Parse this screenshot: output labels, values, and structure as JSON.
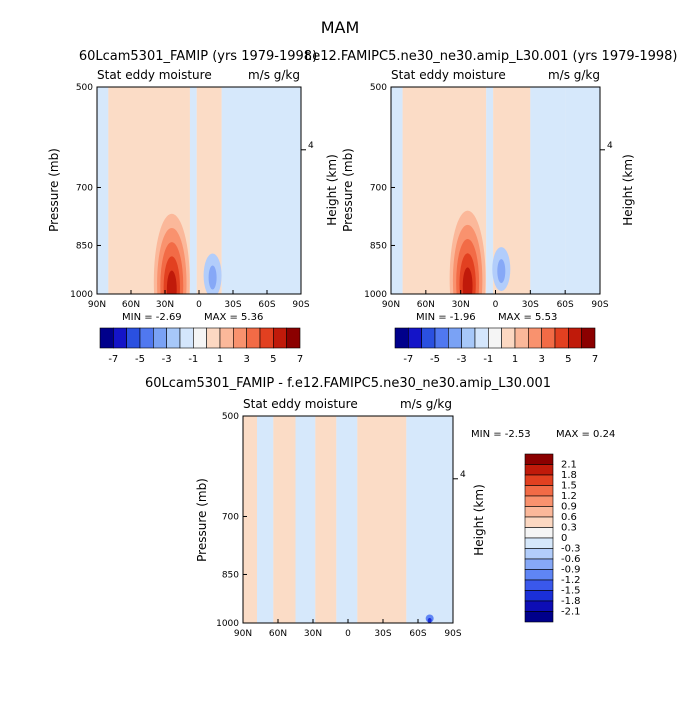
{
  "figure_title": "MAM",
  "colors": {
    "bg_pos": "#fbdcc6",
    "bg_neg": "#d6e8fb",
    "neutral": "#f5f5f5"
  },
  "color_scale_main": [
    "#00008b",
    "#1414c8",
    "#2a50e0",
    "#5078f0",
    "#7aa2f5",
    "#a7c8f9",
    "#d4e6fc",
    "#f5f5f5",
    "#fcd8c2",
    "#fbb89a",
    "#f9926e",
    "#f26b46",
    "#e24020",
    "#c01a0a",
    "#8b0000"
  ],
  "color_scale_diff": [
    "#00008b",
    "#0d0db5",
    "#1a2fd8",
    "#3a58ec",
    "#5f85f5",
    "#86a8f7",
    "#b2cdfb",
    "#d6e8fb",
    "#f5f5f5",
    "#fcd8c2",
    "#fbb89a",
    "#f9926e",
    "#f26b46",
    "#e24020",
    "#c01a0a",
    "#8b0000"
  ],
  "chart_data": [
    {
      "type": "heatmap",
      "title": "60Lcam5301_FAMIP (yrs 1979-1998)",
      "left_label": "Stat eddy moisture",
      "right_label": "m/s g/kg",
      "xlabel": "",
      "ylabel": "Pressure (mb)",
      "ylabel_right": "Height (km)",
      "x_ticks": [
        "90N",
        "60N",
        "30N",
        "0",
        "30S",
        "60S",
        "90S"
      ],
      "xlim": [
        90,
        -90
      ],
      "y_ticks": [
        500,
        700,
        850,
        1000
      ],
      "ylim": [
        500,
        1000
      ],
      "y_scale": "log",
      "right_axis_ticks": [
        "4"
      ],
      "right_axis_tick_pressure": 617,
      "min": -2.69,
      "max": 5.36,
      "min_text": "MIN =   -2.69",
      "max_text": "MAX =    5.36",
      "colorbar_labels": [
        "-7",
        "-5",
        "-3",
        "-1",
        "1",
        "3",
        "5",
        "7"
      ],
      "positive_max": {
        "lat": 24,
        "p": 960,
        "value": 5.36
      },
      "negative_min": {
        "lat": -12,
        "p": 940,
        "value": -2.69
      },
      "bands": [
        {
          "lat_from": 90,
          "lat_to": 80,
          "sign": "neg"
        },
        {
          "lat_from": 80,
          "lat_to": 8,
          "sign": "pos"
        },
        {
          "lat_from": 8,
          "lat_to": 2,
          "sign": "neg"
        },
        {
          "lat_from": 2,
          "lat_to": -20,
          "sign": "pos"
        },
        {
          "lat_from": -20,
          "lat_to": -60,
          "sign": "neg"
        },
        {
          "lat_from": -60,
          "lat_to": -90,
          "sign": "neg"
        }
      ]
    },
    {
      "type": "heatmap",
      "title": "f.e12.FAMIPC5.ne30_ne30.amip_L30.001 (yrs 1979-1998)",
      "left_label": "Stat eddy moisture",
      "right_label": "m/s g/kg",
      "xlabel": "",
      "ylabel": "Pressure (mb)",
      "ylabel_right": "Height (km)",
      "x_ticks": [
        "90N",
        "60N",
        "30N",
        "0",
        "30S",
        "60S",
        "90S"
      ],
      "xlim": [
        90,
        -90
      ],
      "y_ticks": [
        500,
        700,
        850,
        1000
      ],
      "ylim": [
        500,
        1000
      ],
      "y_scale": "log",
      "right_axis_ticks": [
        "4"
      ],
      "right_axis_tick_pressure": 617,
      "min": -1.96,
      "max": 5.53,
      "min_text": "MIN =   -1.96",
      "max_text": "MAX =    5.53",
      "colorbar_labels": [
        "-7",
        "-5",
        "-3",
        "-1",
        "1",
        "3",
        "5",
        "7"
      ],
      "positive_max": {
        "lat": 24,
        "p": 950,
        "value": 5.53
      },
      "negative_min": {
        "lat": -5,
        "p": 920,
        "value": -1.96
      },
      "bands": [
        {
          "lat_from": 90,
          "lat_to": 80,
          "sign": "neg"
        },
        {
          "lat_from": 80,
          "lat_to": 8,
          "sign": "pos"
        },
        {
          "lat_from": 8,
          "lat_to": 2,
          "sign": "neg"
        },
        {
          "lat_from": 2,
          "lat_to": -30,
          "sign": "pos"
        },
        {
          "lat_from": -30,
          "lat_to": -60,
          "sign": "neg"
        },
        {
          "lat_from": -60,
          "lat_to": -90,
          "sign": "neg"
        }
      ]
    },
    {
      "type": "heatmap",
      "title": "60Lcam5301_FAMIP - f.e12.FAMIPC5.ne30_ne30.amip_L30.001",
      "left_label": "Stat eddy moisture",
      "right_label": "m/s g/kg",
      "xlabel": "",
      "ylabel": "Pressure (mb)",
      "ylabel_right": "Height (km)",
      "x_ticks": [
        "90N",
        "60N",
        "30N",
        "0",
        "30S",
        "60S",
        "90S"
      ],
      "xlim": [
        90,
        -90
      ],
      "y_ticks": [
        500,
        700,
        850,
        1000
      ],
      "ylim": [
        500,
        1000
      ],
      "y_scale": "log",
      "right_axis_ticks": [
        "4"
      ],
      "right_axis_tick_pressure": 617,
      "min": -2.53,
      "max": 0.24,
      "min_text": "MIN =   -2.53",
      "max_text": "MAX =    0.24",
      "colorbar_labels": [
        "2.1",
        "1.8",
        "1.5",
        "1.2",
        "0.9",
        "0.6",
        "0.3",
        "0",
        "-0.3",
        "-0.6",
        "-0.9",
        "-1.2",
        "-1.5",
        "-1.8",
        "-2.1"
      ],
      "negative_min": {
        "lat": -70,
        "p": 985,
        "value": -2.53
      },
      "bands": [
        {
          "lat_from": 90,
          "lat_to": 78,
          "sign": "pos"
        },
        {
          "lat_from": 78,
          "lat_to": 64,
          "sign": "neg"
        },
        {
          "lat_from": 64,
          "lat_to": 45,
          "sign": "pos"
        },
        {
          "lat_from": 45,
          "lat_to": 28,
          "sign": "neg"
        },
        {
          "lat_from": 28,
          "lat_to": 10,
          "sign": "pos"
        },
        {
          "lat_from": 10,
          "lat_to": -8,
          "sign": "neg"
        },
        {
          "lat_from": -8,
          "lat_to": -30,
          "sign": "pos"
        },
        {
          "lat_from": -30,
          "lat_to": -50,
          "sign": "pos"
        },
        {
          "lat_from": -50,
          "lat_to": -90,
          "sign": "neg"
        }
      ]
    }
  ]
}
